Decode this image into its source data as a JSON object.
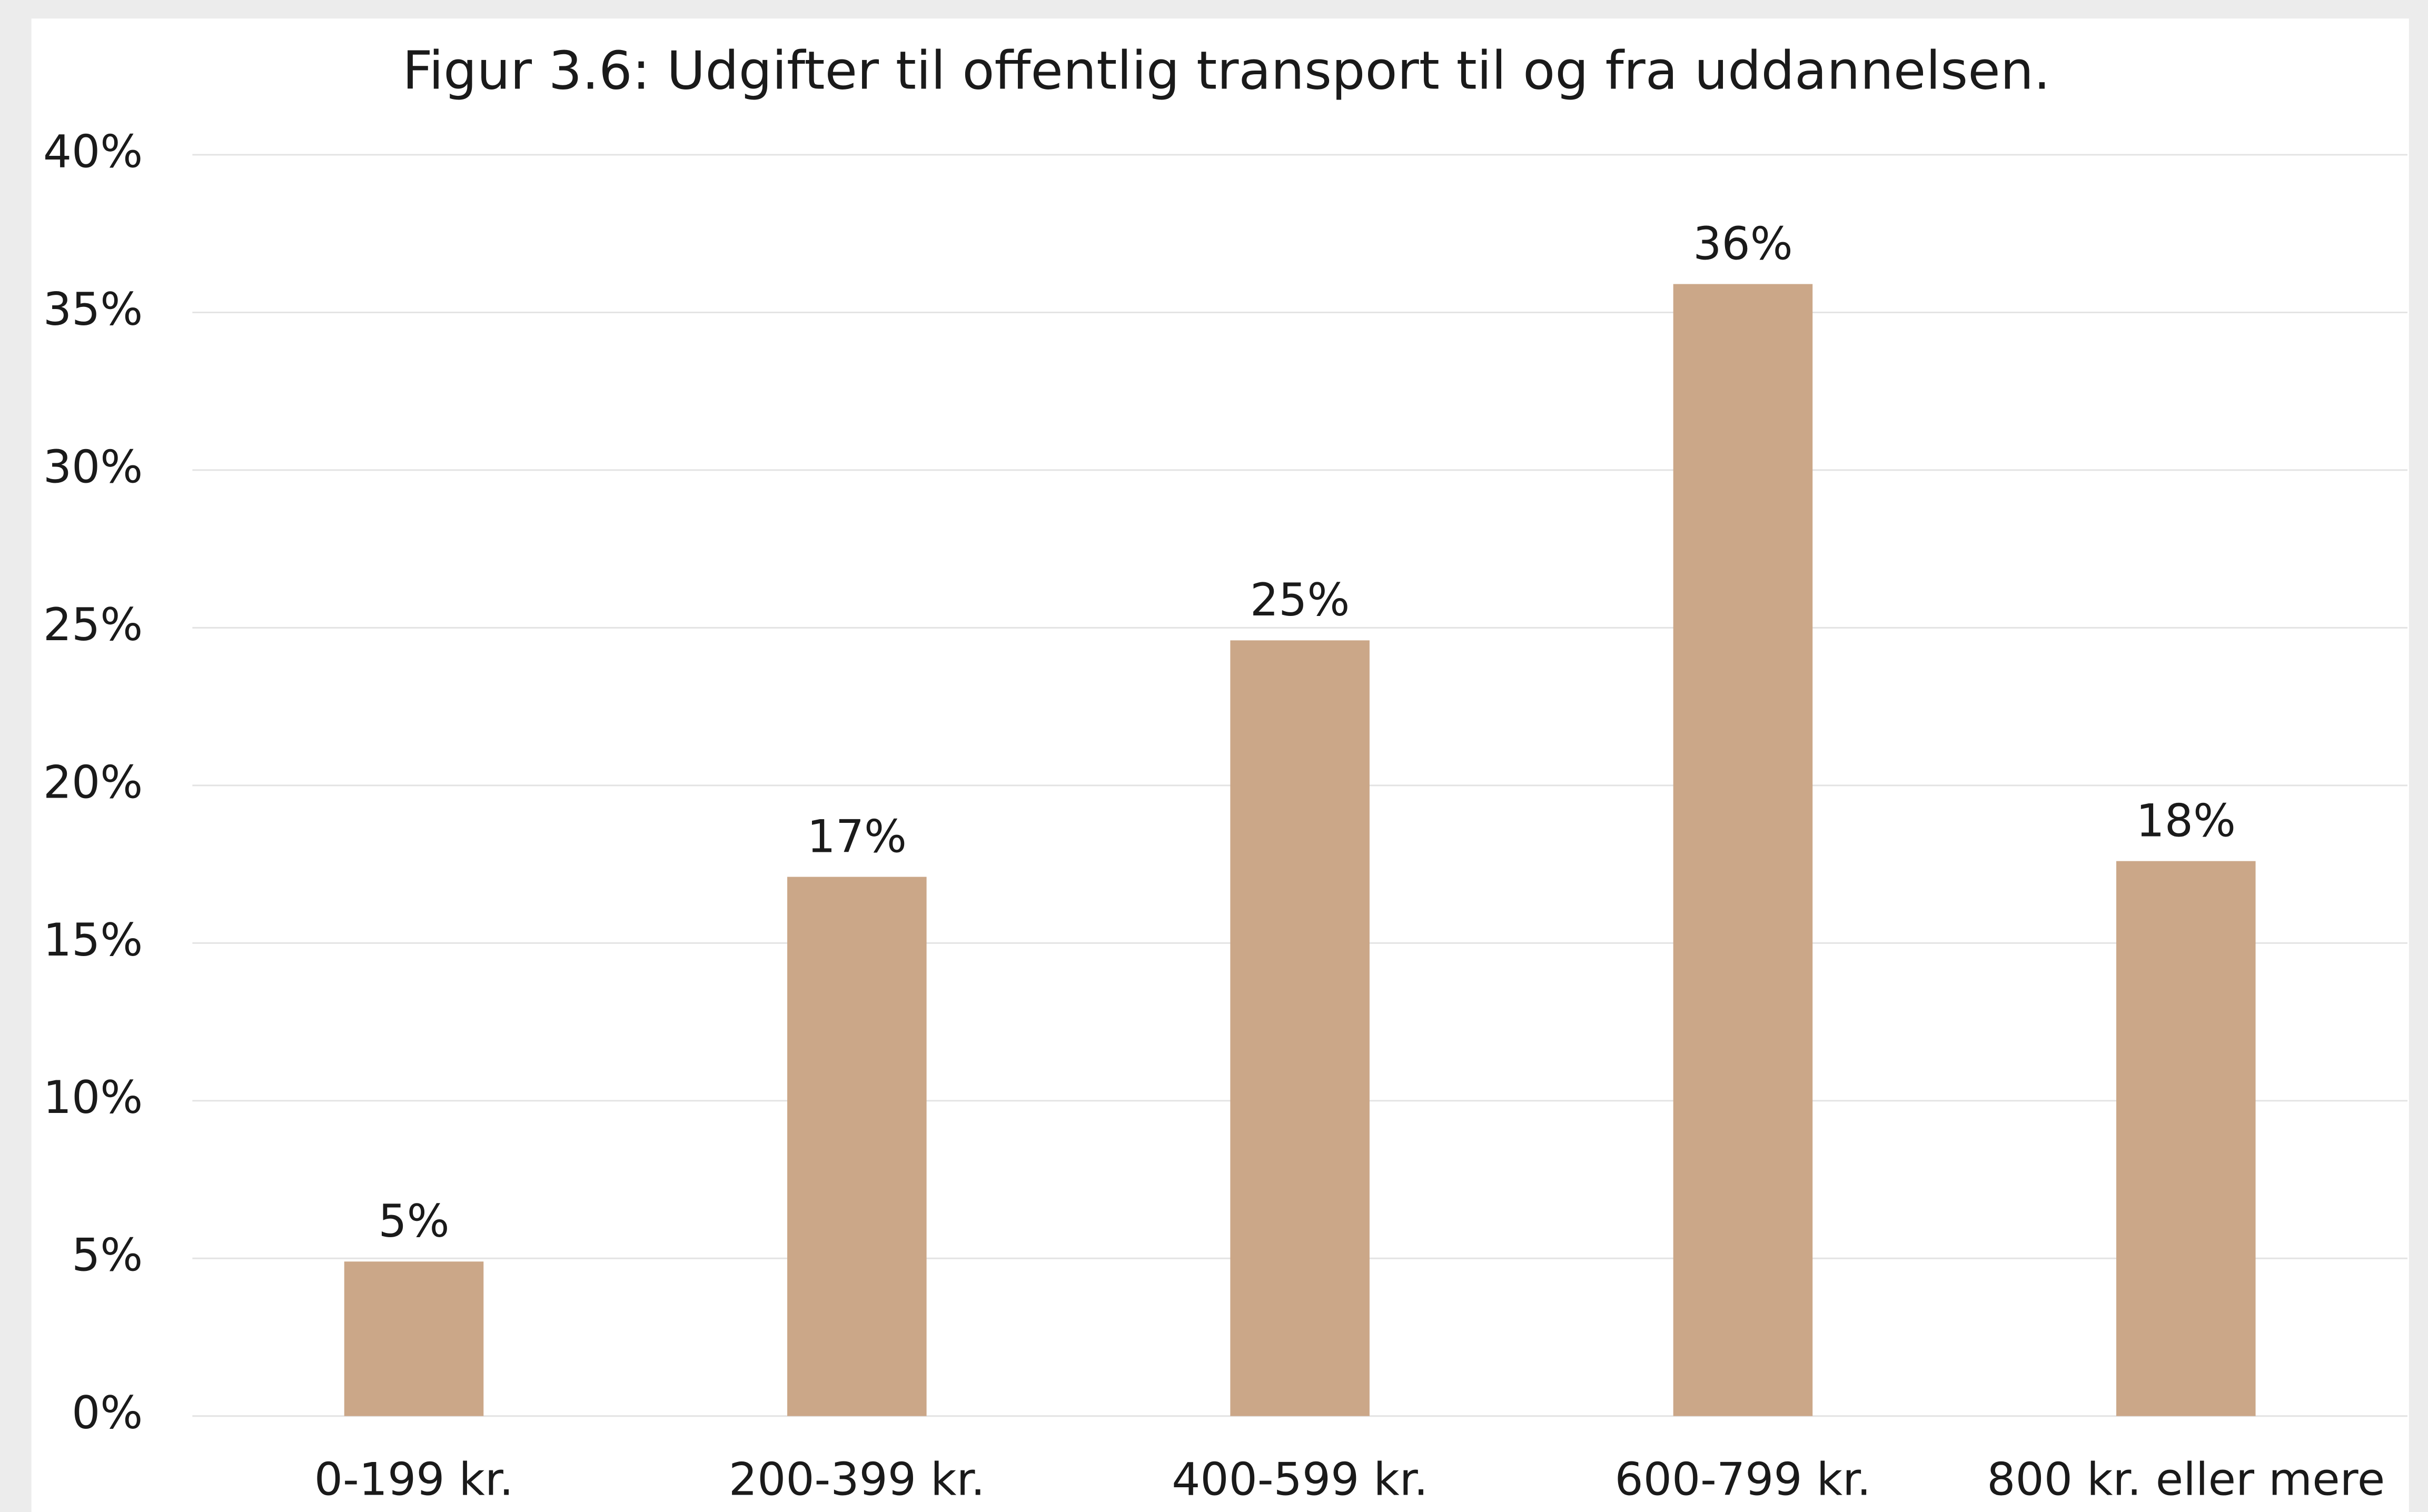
{
  "chart_data": {
    "type": "bar",
    "title": "Figur 3.6: Udgifter til offentlig transport til og fra uddannelsen.",
    "categories": [
      "0-199 kr.",
      "200-399 kr.",
      "400-599 kr.",
      "600-799 kr.",
      "800 kr. eller mere"
    ],
    "values": [
      4.9,
      17.1,
      24.6,
      35.9,
      17.6
    ],
    "value_labels": [
      "5%",
      "17%",
      "25%",
      "36%",
      "18%"
    ],
    "color": "#cba788",
    "ylim": [
      0,
      40
    ],
    "yticks": [
      {
        "value": 0,
        "label": "0%"
      },
      {
        "value": 5,
        "label": "5%"
      },
      {
        "value": 10,
        "label": "10%"
      },
      {
        "value": 15,
        "label": "15%"
      },
      {
        "value": 20,
        "label": "20%"
      },
      {
        "value": 25,
        "label": "25%"
      },
      {
        "value": 30,
        "label": "30%"
      },
      {
        "value": 35,
        "label": "35%"
      },
      {
        "value": 40,
        "label": "40%"
      }
    ],
    "grid": true
  }
}
